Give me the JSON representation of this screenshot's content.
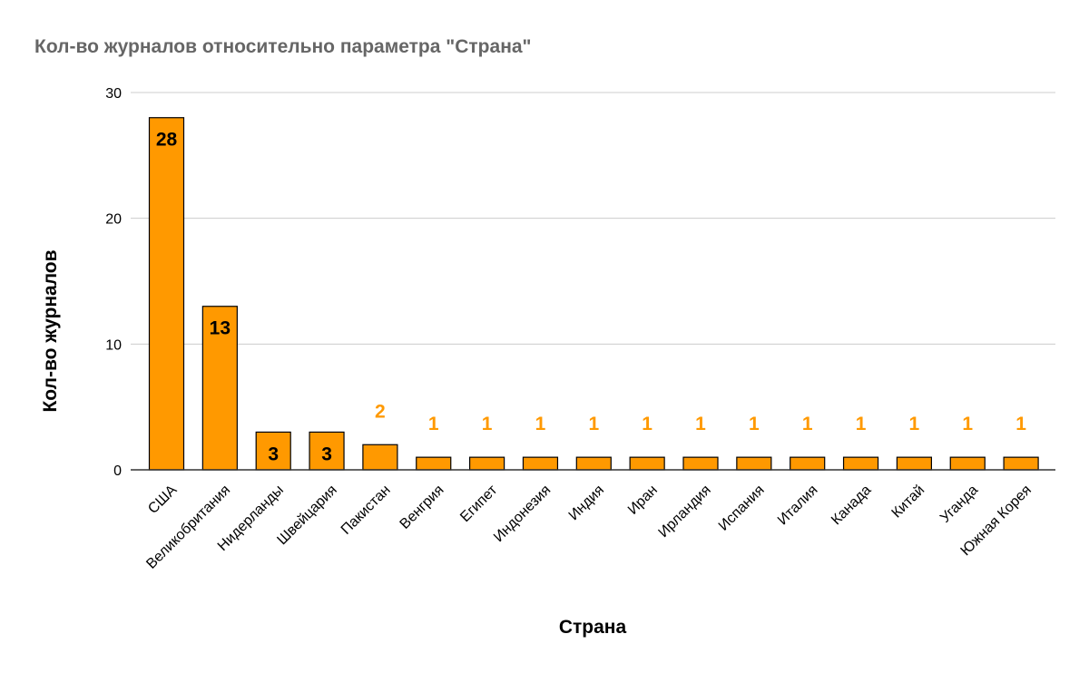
{
  "colors": {
    "bar": "#ff9900",
    "bar_stroke": "#000000",
    "title": "#666666",
    "grid": "#cccccc",
    "baseline": "#333333",
    "label_inside": "#000000",
    "label_outside": "#ff9900"
  },
  "chart_data": {
    "type": "bar",
    "title": "Кол-во журналов относительно параметра \"Страна\"",
    "xlabel": "Страна",
    "ylabel": "Кол-во журналов",
    "ylim": [
      0,
      30
    ],
    "yticks": [
      0,
      10,
      20,
      30
    ],
    "grid": true,
    "legend": "none",
    "categories": [
      "США",
      "Великобритания",
      "Нидерланды",
      "Швейцария",
      "Пакистан",
      "Венгрия",
      "Египет",
      "Индонезия",
      "Индия",
      "Иран",
      "Ирландия",
      "Испания",
      "Италия",
      "Канада",
      "Китай",
      "Уганда",
      "Южная Корея"
    ],
    "values": [
      28,
      13,
      3,
      3,
      2,
      1,
      1,
      1,
      1,
      1,
      1,
      1,
      1,
      1,
      1,
      1,
      1
    ]
  }
}
